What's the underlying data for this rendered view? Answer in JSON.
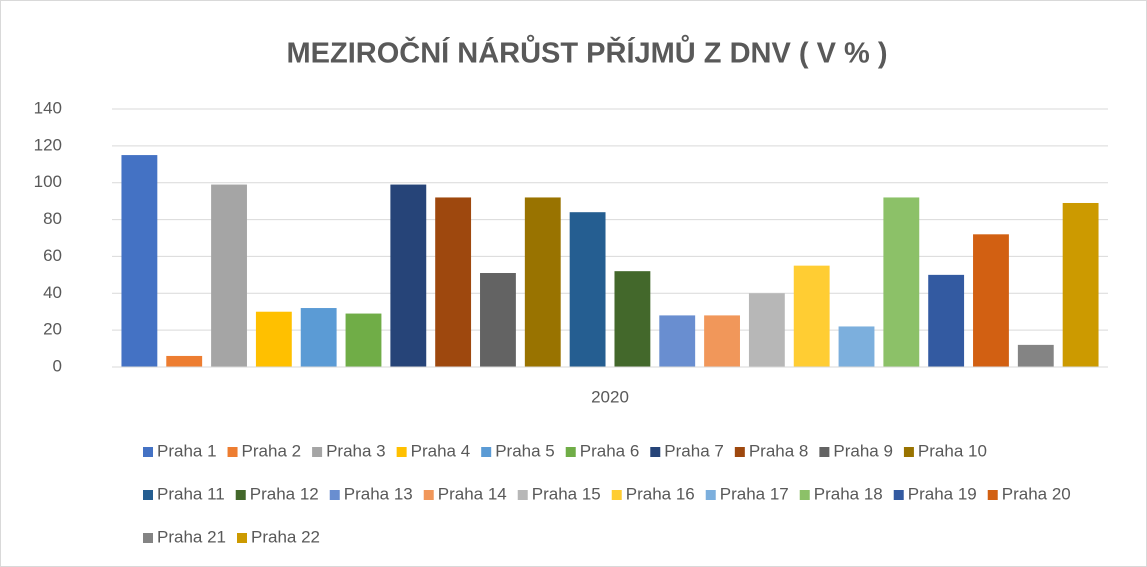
{
  "chart_data": {
    "type": "bar",
    "title": "MEZIROČNÍ NÁRŮST PŘÍJMŮ Z DNV ( V % )",
    "categories": [
      "2020"
    ],
    "series": [
      {
        "name": "Praha 1",
        "color": "#4472C4",
        "values": [
          115
        ]
      },
      {
        "name": "Praha 2",
        "color": "#ED7D31",
        "values": [
          6
        ]
      },
      {
        "name": "Praha 3",
        "color": "#A5A5A5",
        "values": [
          99
        ]
      },
      {
        "name": "Praha 4",
        "color": "#FFC000",
        "values": [
          30
        ]
      },
      {
        "name": "Praha 5",
        "color": "#5B9BD5",
        "values": [
          32
        ]
      },
      {
        "name": "Praha 6",
        "color": "#70AD47",
        "values": [
          29
        ]
      },
      {
        "name": "Praha 7",
        "color": "#264478",
        "values": [
          99
        ]
      },
      {
        "name": "Praha 8",
        "color": "#9E480E",
        "values": [
          92
        ]
      },
      {
        "name": "Praha 9",
        "color": "#636363",
        "values": [
          51
        ]
      },
      {
        "name": "Praha 10",
        "color": "#997300",
        "values": [
          92
        ]
      },
      {
        "name": "Praha 11",
        "color": "#255E91",
        "values": [
          84
        ]
      },
      {
        "name": "Praha 12",
        "color": "#43682B",
        "values": [
          52
        ]
      },
      {
        "name": "Praha 13",
        "color": "#698ED0",
        "values": [
          28
        ]
      },
      {
        "name": "Praha 14",
        "color": "#F1975A",
        "values": [
          28
        ]
      },
      {
        "name": "Praha 15",
        "color": "#B7B7B7",
        "values": [
          40
        ]
      },
      {
        "name": "Praha 16",
        "color": "#FFCD33",
        "values": [
          55
        ]
      },
      {
        "name": "Praha 17",
        "color": "#7CAFDD",
        "values": [
          22
        ]
      },
      {
        "name": "Praha 18",
        "color": "#8CC168",
        "values": [
          92
        ]
      },
      {
        "name": "Praha 19",
        "color": "#335AA1",
        "values": [
          50
        ]
      },
      {
        "name": "Praha 20",
        "color": "#D26012",
        "values": [
          72
        ]
      },
      {
        "name": "Praha 21",
        "color": "#848484",
        "values": [
          12
        ]
      },
      {
        "name": "Praha 22",
        "color": "#CC9A00",
        "values": [
          89
        ]
      }
    ],
    "ylim": [
      0,
      140
    ],
    "yticks": [
      0,
      20,
      40,
      60,
      80,
      100,
      120,
      140
    ],
    "grid": true,
    "legend": "bottom"
  }
}
